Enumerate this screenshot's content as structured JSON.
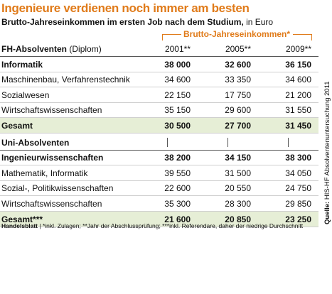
{
  "header": {
    "title": "Ingenieure verdienen noch immer am besten",
    "subtitle": "Brutto-Jahreseinkommen im ersten Job nach dem Studium,",
    "subtitle_unit": "in Euro"
  },
  "table": {
    "group_header": "Brutto-Jahreseinkommen*",
    "sections": [
      {
        "label": "FH-Absolventen",
        "label_note": "(Diplom)",
        "columns": [
          "2001**",
          "2005**",
          "2009**"
        ],
        "rows": [
          {
            "label": "Informatik",
            "values": [
              "38 000",
              "32 600",
              "36 150"
            ]
          },
          {
            "label": "Maschinenbau, Verfahrenstechnik",
            "values": [
              "34 600",
              "33 350",
              "34 600"
            ]
          },
          {
            "label": "Sozialwesen",
            "values": [
              "22 150",
              "17 750",
              "21 200"
            ]
          },
          {
            "label": "Wirtschaftswissenschaften",
            "values": [
              "35 150",
              "29 600",
              "31 550"
            ]
          },
          {
            "label": "Gesamt",
            "values": [
              "30 500",
              "27 700",
              "31 450"
            ]
          }
        ]
      },
      {
        "label": "Uni-Absolventen",
        "rows": [
          {
            "label": "Ingenieurwissenschaften",
            "values": [
              "38 200",
              "34 150",
              "38 300"
            ]
          },
          {
            "label": "Mathematik, Informatik",
            "values": [
              "39 550",
              "31 500",
              "34 050"
            ]
          },
          {
            "label": "Sozial-, Politikwissenschaften",
            "values": [
              "22 600",
              "20 550",
              "24 750"
            ]
          },
          {
            "label": "Wirtschaftswissenschaften",
            "values": [
              "35 300",
              "28 300",
              "29 850"
            ]
          },
          {
            "label": "Gesamt***",
            "values": [
              "21 600",
              "20 850",
              "23 250"
            ]
          }
        ]
      }
    ]
  },
  "footer": {
    "publisher": "Handelsblatt",
    "notes": "| *inkl. Zulagen; **Jahr der Abschlussprüfung; ***inkl. Referendare, daher der niedrige Durchschnitt"
  },
  "source": {
    "label": "Quelle:",
    "text": "HIS-HF Absolventenuntersuchung 2011"
  }
}
